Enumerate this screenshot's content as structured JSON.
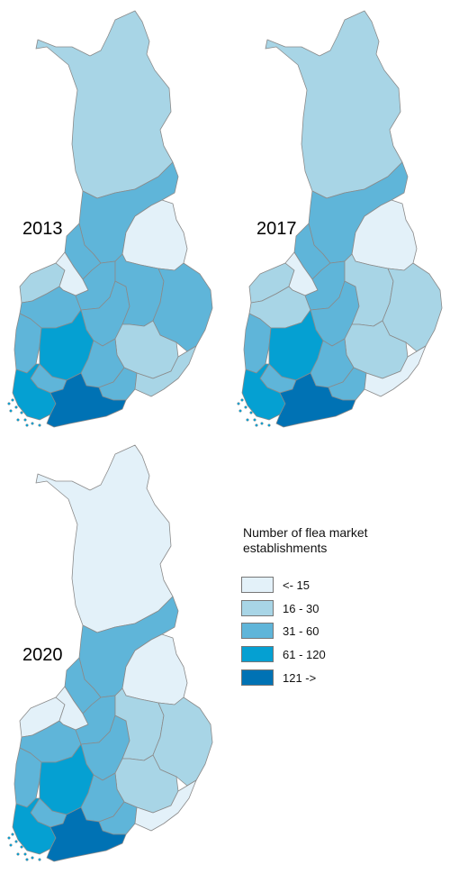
{
  "maps": [
    {
      "year": "2013",
      "regions": {
        "lapland": "16-30",
        "kainuu": "31-60",
        "oulu_north": "31-60",
        "oulu_south": "31-60",
        "kainuu_east": "<15",
        "ostrobothnia": "16-30",
        "central_ostro": "<15",
        "south_ostro": "31-60",
        "central_fin": "31-60",
        "north_savo": "31-60",
        "north_karelia": "31-60",
        "satakunta": "31-60",
        "pirkanmaa": "61-120",
        "south_savo": "16-30",
        "kanta_hame": "31-60",
        "paijat_hame": "31-60",
        "kymenlaakso": "31-60",
        "south_karelia": "16-30",
        "southwest": "61-120",
        "uusimaa": "121->"
      }
    },
    {
      "year": "2017",
      "regions": {
        "lapland": "16-30",
        "kainuu": "31-60",
        "oulu_north": "31-60",
        "oulu_south": "31-60",
        "kainuu_east": "<15",
        "ostrobothnia": "16-30",
        "central_ostro": "<15",
        "south_ostro": "16-30",
        "central_fin": "31-60",
        "north_savo": "16-30",
        "north_karelia": "16-30",
        "satakunta": "31-60",
        "pirkanmaa": "61-120",
        "south_savo": "16-30",
        "kanta_hame": "31-60",
        "paijat_hame": "31-60",
        "kymenlaakso": "31-60",
        "south_karelia": "<15",
        "southwest": "61-120",
        "uusimaa": "121->"
      }
    },
    {
      "year": "2020",
      "regions": {
        "lapland": "<15",
        "kainuu": "31-60",
        "oulu_north": "31-60",
        "oulu_south": "31-60",
        "kainuu_east": "<15",
        "ostrobothnia": "<15",
        "central_ostro": "<15",
        "south_ostro": "31-60",
        "central_fin": "31-60",
        "north_savo": "16-30",
        "north_karelia": "16-30",
        "satakunta": "31-60",
        "pirkanmaa": "61-120",
        "south_savo": "16-30",
        "kanta_hame": "31-60",
        "paijat_hame": "31-60",
        "kymenlaakso": "31-60",
        "south_karelia": "<15",
        "southwest": "61-120",
        "uusimaa": "121->"
      }
    }
  ],
  "legend": {
    "title": "Number of flea market establishments",
    "classes": [
      {
        "key": "<15",
        "label": "<- 15",
        "color": "#e3f1f9"
      },
      {
        "key": "16-30",
        "label": "16 - 30",
        "color": "#a8d5e6"
      },
      {
        "key": "31-60",
        "label": "31 - 60",
        "color": "#5fb5d9"
      },
      {
        "key": "61-120",
        "label": "61 - 120",
        "color": "#05a0d2"
      },
      {
        "key": "121->",
        "label": "121 ->",
        "color": "#0072b4"
      }
    ]
  },
  "colors": {
    "border": "#8a8a8a",
    "background": "#ffffff"
  }
}
